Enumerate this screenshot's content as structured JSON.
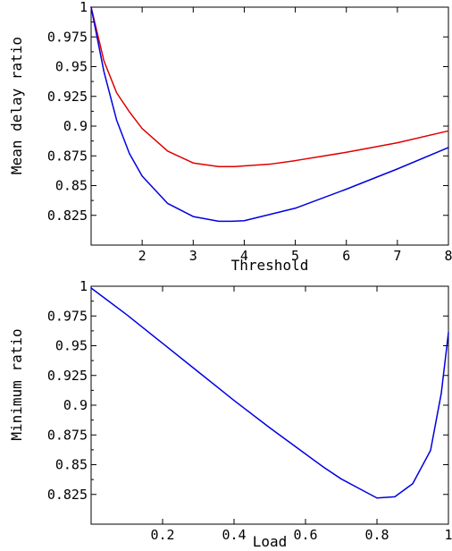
{
  "chart_data": [
    {
      "type": "line",
      "title": "",
      "xlabel": "Threshold",
      "ylabel": "Mean delay ratio",
      "xlim": [
        1,
        8
      ],
      "ylim": [
        0.8,
        1.0
      ],
      "xticks": [
        2,
        3,
        4,
        5,
        6,
        7,
        8
      ],
      "xtick_labels": [
        "2",
        "3",
        "4",
        "5",
        "6",
        "7",
        "8"
      ],
      "yticks": [
        0.825,
        0.85,
        0.875,
        0.9,
        0.925,
        0.95,
        0.975,
        1.0
      ],
      "ytick_labels": [
        "0.825",
        "0.85",
        "0.875",
        "0.9",
        "0.925",
        "0.95",
        "0.975",
        "1"
      ],
      "grid": false,
      "series": [
        {
          "color": "#e00000",
          "x": [
            1.0,
            1.25,
            1.5,
            1.75,
            2.0,
            2.5,
            3.0,
            3.5,
            3.8,
            4.5,
            5.0,
            6.0,
            7.0,
            8.0
          ],
          "y": [
            1.0,
            0.955,
            0.928,
            0.912,
            0.898,
            0.879,
            0.869,
            0.866,
            0.866,
            0.868,
            0.871,
            0.878,
            0.886,
            0.896
          ]
        },
        {
          "color": "#0000e0",
          "x": [
            1.0,
            1.25,
            1.5,
            1.75,
            2.0,
            2.5,
            3.0,
            3.5,
            3.75,
            4.0,
            5.0,
            6.0,
            7.0,
            8.0
          ],
          "y": [
            1.0,
            0.946,
            0.905,
            0.877,
            0.858,
            0.835,
            0.824,
            0.82,
            0.82,
            0.8205,
            0.831,
            0.847,
            0.864,
            0.882
          ]
        }
      ]
    },
    {
      "type": "line",
      "title": "",
      "xlabel": "Load",
      "ylabel": "Minimum ratio",
      "xlim": [
        0,
        1
      ],
      "ylim": [
        0.8,
        1.0
      ],
      "xticks": [
        0.2,
        0.4,
        0.6,
        0.8,
        1.0
      ],
      "xtick_labels": [
        "0.2",
        "0.4",
        "0.6",
        "0.8",
        "1"
      ],
      "yticks": [
        0.825,
        0.85,
        0.875,
        0.9,
        0.925,
        0.95,
        0.975,
        1.0
      ],
      "ytick_labels": [
        "0.825",
        "0.85",
        "0.875",
        "0.9",
        "0.925",
        "0.95",
        "0.975",
        "1"
      ],
      "grid": false,
      "series": [
        {
          "color": "#0000e0",
          "x": [
            0.0,
            0.1,
            0.2,
            0.3,
            0.4,
            0.5,
            0.6,
            0.65,
            0.7,
            0.75,
            0.8,
            0.85,
            0.9,
            0.95,
            0.98,
            1.0
          ],
          "y": [
            0.9985,
            0.976,
            0.952,
            0.928,
            0.904,
            0.881,
            0.859,
            0.848,
            0.838,
            0.83,
            0.822,
            0.823,
            0.834,
            0.862,
            0.91,
            0.961
          ]
        }
      ]
    }
  ]
}
